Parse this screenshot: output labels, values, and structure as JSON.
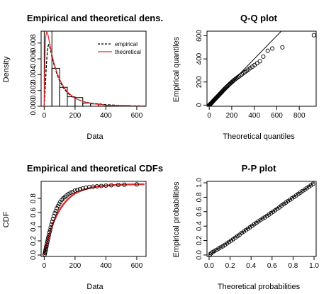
{
  "chart_data": [
    {
      "type": "bar",
      "title": "Empirical and theoretical dens.",
      "xlabel": "Data",
      "ylabel": "Density",
      "xlim": [
        -20,
        660
      ],
      "ylim": [
        0,
        0.0095
      ],
      "xticks": [
        0,
        200,
        400,
        600
      ],
      "xtick_labels": [
        "0",
        "200",
        "400",
        "600"
      ],
      "yticks": [
        0,
        0.002,
        0.004,
        0.006,
        0.008
      ],
      "ytick_labels": [
        "0.000",
        "0.002",
        "0.004",
        "0.006",
        "0.008"
      ],
      "bins": [
        {
          "x0": 0,
          "x1": 50,
          "value": 0.0095
        },
        {
          "x0": 50,
          "x1": 100,
          "value": 0.0048
        },
        {
          "x0": 100,
          "x1": 150,
          "value": 0.0024
        },
        {
          "x0": 150,
          "x1": 200,
          "value": 0.0012
        },
        {
          "x0": 200,
          "x1": 250,
          "value": 0.0011
        },
        {
          "x0": 250,
          "x1": 300,
          "value": 0.0004
        },
        {
          "x0": 300,
          "x1": 350,
          "value": 0.0003
        },
        {
          "x0": 350,
          "x1": 400,
          "value": 0.0002
        },
        {
          "x0": 400,
          "x1": 450,
          "value": 0.0001
        },
        {
          "x0": 450,
          "x1": 500,
          "value": 0.0001
        },
        {
          "x0": 500,
          "x1": 550,
          "value": 0.0001
        },
        {
          "x0": 550,
          "x1": 600,
          "value": 0.0
        },
        {
          "x0": 600,
          "x1": 650,
          "value": 5e-05
        }
      ],
      "series": [
        {
          "name": "empirical",
          "style": "dashed",
          "color": "#000000",
          "x": [
            0,
            5,
            10,
            15,
            20,
            25,
            30,
            35,
            40,
            50,
            60,
            80,
            100,
            125,
            150,
            175,
            200,
            250,
            300,
            400,
            500,
            600,
            650
          ],
          "y": [
            0.0,
            0.0015,
            0.0035,
            0.0055,
            0.0068,
            0.0076,
            0.0078,
            0.0076,
            0.0072,
            0.0063,
            0.0055,
            0.0042,
            0.0032,
            0.0023,
            0.0017,
            0.0013,
            0.001,
            0.0006,
            0.0004,
            0.0002,
            0.0001,
            5e-05,
            3e-05
          ]
        },
        {
          "name": "theoretical",
          "style": "solid",
          "color": "#e03030",
          "x": [
            0,
            3,
            6,
            10,
            15,
            20,
            25,
            30,
            40,
            50,
            60,
            80,
            100,
            125,
            150,
            175,
            200,
            250,
            300,
            400,
            500,
            600,
            650
          ],
          "y": [
            0.0,
            0.004,
            0.0072,
            0.0088,
            0.0094,
            0.0093,
            0.009,
            0.0085,
            0.0075,
            0.0066,
            0.0057,
            0.0044,
            0.0034,
            0.0025,
            0.0018,
            0.0014,
            0.001,
            0.0006,
            0.00035,
            0.00013,
            5e-05,
            2e-05,
            1e-05
          ]
        }
      ],
      "legend_position": "top-right"
    },
    {
      "type": "scatter",
      "title": "Q-Q plot",
      "xlabel": "Theoretical quantiles",
      "ylabel": "Empirical quantiles",
      "xlim": [
        -20,
        950
      ],
      "ylim": [
        -10,
        640
      ],
      "xticks": [
        0,
        200,
        400,
        600,
        800
      ],
      "xtick_labels": [
        "0",
        "200",
        "400",
        "600",
        "800"
      ],
      "yticks": [
        0,
        200,
        400,
        600
      ],
      "ytick_labels": [
        "0",
        "200",
        "400",
        "600"
      ],
      "reference_line": [
        [
          0,
          0
        ],
        [
          640,
          640
        ]
      ],
      "x": [
        2,
        5,
        8,
        11,
        15,
        19,
        23,
        27,
        31,
        35,
        39,
        43,
        47,
        51,
        56,
        60,
        65,
        70,
        75,
        80,
        85,
        90,
        95,
        101,
        107,
        113,
        119,
        125,
        131,
        137,
        144,
        151,
        158,
        165,
        172,
        180,
        188,
        196,
        205,
        214,
        223,
        233,
        243,
        254,
        265,
        277,
        290,
        303,
        317,
        332,
        348,
        365,
        383,
        403,
        425,
        450,
        480,
        520,
        560,
        650,
        930
      ],
      "y": [
        2,
        4,
        7,
        10,
        14,
        18,
        22,
        26,
        31,
        35,
        39,
        43,
        47,
        52,
        56,
        61,
        66,
        71,
        76,
        81,
        86,
        92,
        97,
        103,
        109,
        115,
        122,
        128,
        134,
        140,
        147,
        154,
        160,
        167,
        174,
        181,
        188,
        196,
        203,
        211,
        218,
        226,
        233,
        241,
        249,
        258,
        267,
        276,
        286,
        297,
        308,
        320,
        333,
        347,
        362,
        380,
        420,
        470,
        490,
        500,
        605
      ]
    },
    {
      "type": "scatter",
      "title": "Empirical and theoretical CDFs",
      "xlabel": "Data",
      "ylabel": "CDF",
      "xlim": [
        -20,
        660
      ],
      "ylim": [
        -0.02,
        1.04
      ],
      "xticks": [
        0,
        200,
        400,
        600
      ],
      "xtick_labels": [
        "0",
        "200",
        "400",
        "600"
      ],
      "yticks": [
        0,
        0.2,
        0.4,
        0.6,
        0.8
      ],
      "ytick_labels": [
        "0.0",
        "0.2",
        "0.4",
        "0.6",
        "0.8"
      ],
      "x": [
        3,
        5,
        7,
        9,
        11,
        13,
        15,
        18,
        21,
        24,
        27,
        30,
        34,
        38,
        42,
        47,
        52,
        57,
        63,
        69,
        75,
        82,
        89,
        97,
        105,
        114,
        124,
        134,
        145,
        157,
        170,
        184,
        199,
        215,
        232,
        250,
        270,
        292,
        316,
        342,
        370,
        400,
        435,
        480,
        520,
        600
      ],
      "y": [
        0.01,
        0.03,
        0.05,
        0.07,
        0.09,
        0.11,
        0.13,
        0.16,
        0.19,
        0.22,
        0.25,
        0.28,
        0.32,
        0.35,
        0.39,
        0.43,
        0.47,
        0.51,
        0.55,
        0.59,
        0.62,
        0.66,
        0.69,
        0.72,
        0.75,
        0.78,
        0.8,
        0.82,
        0.84,
        0.86,
        0.88,
        0.89,
        0.91,
        0.92,
        0.93,
        0.94,
        0.95,
        0.96,
        0.965,
        0.97,
        0.975,
        0.98,
        0.985,
        0.99,
        0.993,
        0.997
      ],
      "theoretical_curve": {
        "x": [
          0,
          10,
          20,
          30,
          40,
          50,
          70,
          90,
          110,
          130,
          150,
          175,
          200,
          250,
          300,
          350,
          400,
          450,
          500,
          550,
          600,
          650
        ],
        "y": [
          0.0,
          0.1,
          0.19,
          0.27,
          0.34,
          0.41,
          0.51,
          0.6,
          0.67,
          0.73,
          0.78,
          0.83,
          0.87,
          0.92,
          0.95,
          0.97,
          0.98,
          0.988,
          0.993,
          0.996,
          0.998,
          0.999
        ],
        "color": "#e03030"
      }
    },
    {
      "type": "scatter",
      "title": "P-P plot",
      "xlabel": "Theoretical probabilities",
      "ylabel": "Empirical probabilities",
      "xlim": [
        -0.02,
        1.02
      ],
      "ylim": [
        -0.02,
        1.02
      ],
      "xticks": [
        0,
        0.2,
        0.4,
        0.6,
        0.8,
        1.0
      ],
      "xtick_labels": [
        "0.0",
        "0.2",
        "0.4",
        "0.6",
        "0.8",
        "1.0"
      ],
      "yticks": [
        0,
        0.2,
        0.4,
        0.6,
        0.8,
        1.0
      ],
      "ytick_labels": [
        "0.0",
        "0.2",
        "0.4",
        "0.6",
        "0.8",
        "1.0"
      ],
      "reference_line": [
        [
          0,
          0
        ],
        [
          1,
          1
        ]
      ],
      "x": [
        0.01,
        0.02,
        0.035,
        0.05,
        0.07,
        0.09,
        0.11,
        0.13,
        0.15,
        0.17,
        0.19,
        0.21,
        0.23,
        0.25,
        0.27,
        0.29,
        0.31,
        0.33,
        0.35,
        0.37,
        0.39,
        0.41,
        0.43,
        0.45,
        0.47,
        0.49,
        0.51,
        0.53,
        0.55,
        0.57,
        0.59,
        0.61,
        0.63,
        0.65,
        0.67,
        0.69,
        0.71,
        0.73,
        0.75,
        0.77,
        0.79,
        0.81,
        0.83,
        0.85,
        0.87,
        0.89,
        0.91,
        0.93,
        0.95,
        0.97,
        0.99
      ],
      "y": [
        0.01,
        0.025,
        0.04,
        0.055,
        0.07,
        0.09,
        0.105,
        0.12,
        0.14,
        0.16,
        0.18,
        0.2,
        0.22,
        0.24,
        0.26,
        0.28,
        0.305,
        0.325,
        0.345,
        0.365,
        0.385,
        0.405,
        0.425,
        0.445,
        0.465,
        0.485,
        0.505,
        0.52,
        0.54,
        0.56,
        0.58,
        0.6,
        0.62,
        0.64,
        0.66,
        0.685,
        0.705,
        0.725,
        0.745,
        0.765,
        0.785,
        0.805,
        0.825,
        0.845,
        0.865,
        0.885,
        0.905,
        0.925,
        0.945,
        0.965,
        0.985
      ]
    }
  ]
}
